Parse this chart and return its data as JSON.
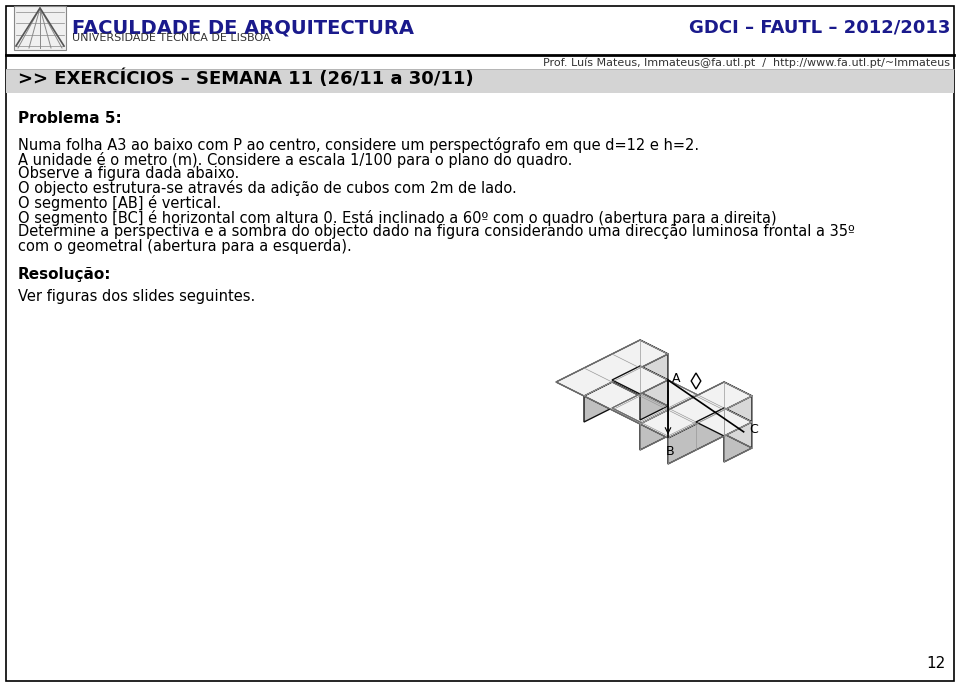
{
  "page_bg": "#ffffff",
  "border_color": "#000000",
  "section_bg": "#d4d4d4",
  "title_text": "FACULDADE DE ARQUITECTURA",
  "subtitle_text": "UNIVERSIDADE TÉCNICA DE LISBOA",
  "right_header": "GDCI – FAUTL – 2012/2013",
  "contact_line": "Prof. Luís Mateus, lmmateus@fa.utl.pt  /  http://www.fa.utl.pt/~lmmateus",
  "section_title": ">> EXERCÍCIOS – SEMANA 11 (26/11 a 30/11)",
  "problem_title": "Problema 5:",
  "body_lines": [
    "Numa folha A3 ao baixo com P ao centro, considere um perspectógrafo em que d=12 e h=2.",
    "A unidade é o metro (m). Considere a escala 1/100 para o plano do quadro.",
    "Observe a figura dada abaixo.",
    "O objecto estrutura-se através da adição de cubos com 2m de lado.",
    "O segmento [AB] é vertical.",
    "O segmento [BC] é horizontal com altura 0. Está inclinado a 60º com o quadro (abertura para a direita)",
    "Determine a perspectiva e a sombra do objecto dado na figura considerando uma direcção luminosa frontal a 35º",
    "com o geometral (abertura para a esquerda)."
  ],
  "resolution_title": "Resolução:",
  "resolution_text": "Ver figuras dos slides seguintes.",
  "page_number": "12",
  "body_fontsize": 10.5,
  "header_title_fontsize": 14,
  "section_fontsize": 13,
  "problem_fontsize": 11,
  "contact_fontsize": 8,
  "logo_color": "#888888",
  "face_top": "#f2f2f2",
  "face_front": "#d8d8d8",
  "face_right": "#c0c0c0",
  "edge_color": "#111111",
  "label_color": "#000000"
}
